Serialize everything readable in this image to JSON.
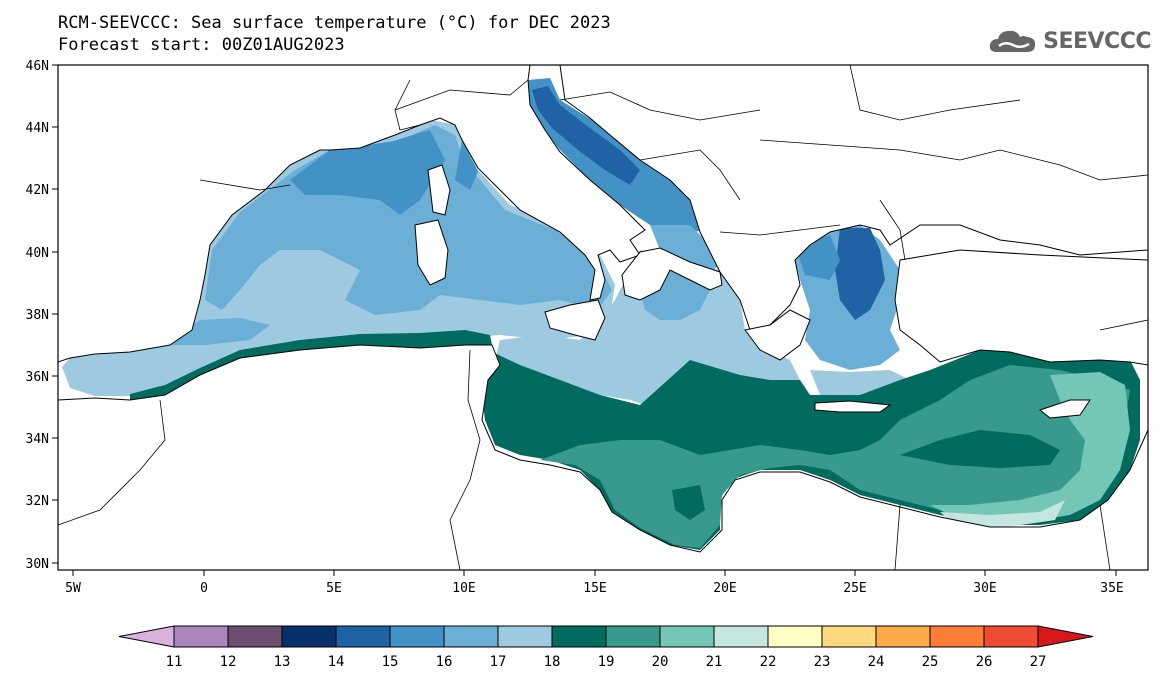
{
  "title_line1": "RCM-SEEVCCC: Sea surface temperature (°C) for DEC 2023",
  "title_line2": "Forecast start: 00Z01AUG2023",
  "logo": {
    "text": "SEEVCCC",
    "icon": "cloud-icon"
  },
  "map": {
    "region": "Mediterranean Sea",
    "lon_ticks": [
      "5W",
      "0",
      "5E",
      "10E",
      "15E",
      "20E",
      "25E",
      "30E",
      "35E"
    ],
    "lat_ticks": [
      "46N",
      "44N",
      "42N",
      "40N",
      "38N",
      "36N",
      "34N",
      "32N",
      "30N"
    ],
    "lon_range": [
      -5.5,
      36.5
    ],
    "lat_range": [
      29.9,
      46
    ],
    "land_color": "#ffffff",
    "coastline_color": "#000000"
  },
  "colorbar": {
    "labels": [
      "11",
      "12",
      "13",
      "14",
      "15",
      "16",
      "17",
      "18",
      "19",
      "20",
      "21",
      "22",
      "23",
      "24",
      "25",
      "26",
      "27"
    ],
    "colors": [
      "#d8b2dc",
      "#ab86bc",
      "#6a4d6f",
      "#08306b",
      "#2063a5",
      "#4292c6",
      "#6baed6",
      "#9ecae1",
      "#006b5e",
      "#389a8c",
      "#74c6b6",
      "#c4e6de",
      "#ffffc4",
      "#fed97e",
      "#fdab4b",
      "#fc7d36",
      "#f04c34",
      "#d7191c"
    ]
  },
  "sst_regions": [
    {
      "area": "Western Mediterranean",
      "value_range": "16-17"
    },
    {
      "area": "Alboran Sea",
      "value_range": "17-18"
    },
    {
      "area": "Gulf of Lion / Ligurian Sea",
      "value_range": "15-16"
    },
    {
      "area": "Tyrrhenian Sea",
      "value_range": "16-17"
    },
    {
      "area": "Northern Adriatic",
      "value_range": "14-15"
    },
    {
      "area": "Central Adriatic",
      "value_range": "15-16"
    },
    {
      "area": "Northern Aegean",
      "value_range": "14-16"
    },
    {
      "area": "Southern Aegean",
      "value_range": "17-18"
    },
    {
      "area": "Ionian Sea",
      "value_range": "17-18"
    },
    {
      "area": "Central Mediterranean",
      "value_range": "18-19"
    },
    {
      "area": "Gulf of Sidra",
      "value_range": "19-20"
    },
    {
      "area": "Levantine Basin",
      "value_range": "19-21"
    }
  ]
}
